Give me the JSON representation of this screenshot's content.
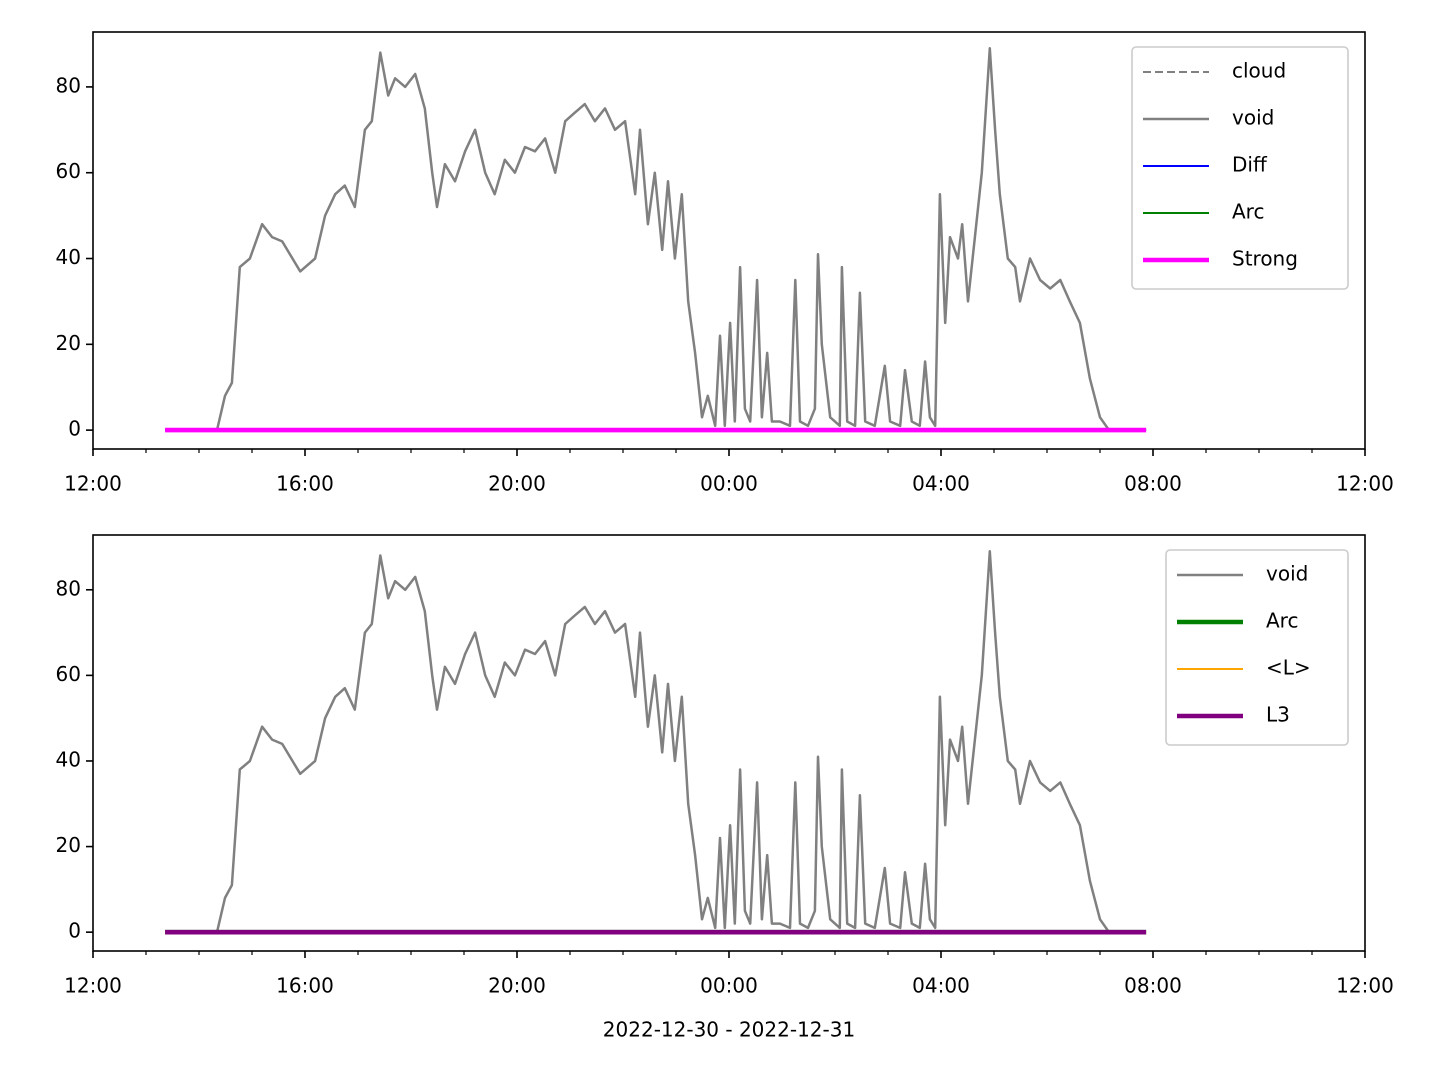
{
  "chart_data": [
    {
      "type": "line",
      "xlim": [
        0,
        24
      ],
      "ylim": [
        -4.4,
        92.8
      ],
      "xticks": [
        {
          "value": 0,
          "label": "12:00"
        },
        {
          "value": 4,
          "label": "16:00"
        },
        {
          "value": 8,
          "label": "20:00"
        },
        {
          "value": 12,
          "label": "00:00"
        },
        {
          "value": 16,
          "label": "04:00"
        },
        {
          "value": 20,
          "label": "08:00"
        },
        {
          "value": 24,
          "label": "12:00"
        }
      ],
      "xminorticks": [
        1,
        2,
        3,
        5,
        6,
        7,
        9,
        10,
        11,
        13,
        14,
        15,
        17,
        18,
        19,
        21,
        22,
        23
      ],
      "yticks": [
        0,
        20,
        40,
        60,
        80
      ],
      "legend": "upper right",
      "series": [
        {
          "name": "cloud",
          "color": "#808080",
          "linestyle": "dashed",
          "linewidth": 1,
          "x": [
            1.36,
            19.87
          ],
          "values": [
            0,
            0
          ]
        },
        {
          "name": "void",
          "color": "#808080",
          "linestyle": "solid",
          "linewidth": 1.2,
          "x": [
            2.34,
            2.49,
            2.62,
            2.77,
            2.96,
            3.19,
            3.38,
            3.57,
            3.91,
            4.19,
            4.38,
            4.57,
            4.75,
            4.94,
            5.13,
            5.26,
            5.42,
            5.57,
            5.7,
            5.89,
            6.08,
            6.26,
            6.4,
            6.49,
            6.64,
            6.83,
            7.02,
            7.21,
            7.4,
            7.58,
            7.77,
            7.96,
            8.15,
            8.34,
            8.53,
            8.72,
            8.91,
            9.09,
            9.28,
            9.47,
            9.66,
            9.85,
            10.04,
            10.23,
            10.32,
            10.47,
            10.6,
            10.74,
            10.85,
            10.98,
            11.11,
            11.23,
            11.36,
            11.49,
            11.6,
            11.74,
            11.83,
            11.92,
            12.02,
            12.11,
            12.21,
            12.3,
            12.4,
            12.53,
            12.62,
            12.72,
            12.81,
            12.96,
            13.15,
            13.25,
            13.34,
            13.49,
            13.62,
            13.68,
            13.75,
            13.91,
            14.09,
            14.13,
            14.23,
            14.38,
            14.47,
            14.57,
            14.75,
            14.94,
            15.04,
            15.23,
            15.32,
            15.45,
            15.6,
            15.7,
            15.79,
            15.89,
            15.98,
            16.08,
            16.17,
            16.32,
            16.4,
            16.51,
            16.64,
            16.77,
            16.92,
            17.02,
            17.11,
            17.26,
            17.4,
            17.49,
            17.68,
            17.87,
            18.06,
            18.25,
            18.43,
            18.62,
            18.81,
            19.0,
            19.17
          ],
          "values": [
            0,
            8,
            11,
            38,
            40,
            48,
            45,
            44,
            37,
            40,
            50,
            55,
            57,
            52,
            70,
            72,
            88,
            78,
            82,
            80,
            83,
            75,
            60,
            52,
            62,
            58,
            65,
            70,
            60,
            55,
            63,
            60,
            66,
            65,
            68,
            60,
            72,
            74,
            76,
            72,
            75,
            70,
            72,
            55,
            70,
            48,
            60,
            42,
            58,
            40,
            55,
            30,
            18,
            3,
            8,
            1,
            22,
            1,
            25,
            2,
            38,
            5,
            2,
            35,
            3,
            18,
            2,
            2,
            1,
            35,
            2,
            1,
            5,
            41,
            20,
            3,
            1,
            38,
            2,
            1,
            32,
            2,
            1,
            15,
            2,
            1,
            14,
            2,
            1,
            16,
            3,
            1,
            55,
            25,
            45,
            40,
            48,
            30,
            45,
            60,
            89,
            70,
            55,
            40,
            38,
            30,
            40,
            35,
            33,
            35,
            30,
            25,
            12,
            3,
            0
          ]
        },
        {
          "name": "Diff",
          "color": "#0000ff",
          "linestyle": "solid",
          "linewidth": 1,
          "x": [
            1.36,
            19.87
          ],
          "values": [
            0,
            0
          ]
        },
        {
          "name": "Arc",
          "color": "#008000",
          "linestyle": "solid",
          "linewidth": 1,
          "x": [
            1.36,
            19.87
          ],
          "values": [
            0,
            0
          ]
        },
        {
          "name": "Strong",
          "color": "#ff00ff",
          "linestyle": "solid",
          "linewidth": 2.2,
          "x": [
            1.36,
            19.87
          ],
          "values": [
            0,
            0
          ]
        }
      ]
    },
    {
      "type": "line",
      "xlim": [
        0,
        24
      ],
      "ylim": [
        -4.4,
        92.8
      ],
      "xlabel": "2022-12-30 - 2022-12-31",
      "xticks": [
        {
          "value": 0,
          "label": "12:00"
        },
        {
          "value": 4,
          "label": "16:00"
        },
        {
          "value": 8,
          "label": "20:00"
        },
        {
          "value": 12,
          "label": "00:00"
        },
        {
          "value": 16,
          "label": "04:00"
        },
        {
          "value": 20,
          "label": "08:00"
        },
        {
          "value": 24,
          "label": "12:00"
        }
      ],
      "xminorticks": [
        1,
        2,
        3,
        5,
        6,
        7,
        9,
        10,
        11,
        13,
        14,
        15,
        17,
        18,
        19,
        21,
        22,
        23
      ],
      "yticks": [
        0,
        20,
        40,
        60,
        80
      ],
      "legend": "upper right",
      "series": [
        {
          "name": "void",
          "color": "#808080",
          "linestyle": "solid",
          "linewidth": 1.2,
          "x": [
            2.34,
            2.49,
            2.62,
            2.77,
            2.96,
            3.19,
            3.38,
            3.57,
            3.91,
            4.19,
            4.38,
            4.57,
            4.75,
            4.94,
            5.13,
            5.26,
            5.42,
            5.57,
            5.7,
            5.89,
            6.08,
            6.26,
            6.4,
            6.49,
            6.64,
            6.83,
            7.02,
            7.21,
            7.4,
            7.58,
            7.77,
            7.96,
            8.15,
            8.34,
            8.53,
            8.72,
            8.91,
            9.09,
            9.28,
            9.47,
            9.66,
            9.85,
            10.04,
            10.23,
            10.32,
            10.47,
            10.6,
            10.74,
            10.85,
            10.98,
            11.11,
            11.23,
            11.36,
            11.49,
            11.6,
            11.74,
            11.83,
            11.92,
            12.02,
            12.11,
            12.21,
            12.3,
            12.4,
            12.53,
            12.62,
            12.72,
            12.81,
            12.96,
            13.15,
            13.25,
            13.34,
            13.49,
            13.62,
            13.68,
            13.75,
            13.91,
            14.09,
            14.13,
            14.23,
            14.38,
            14.47,
            14.57,
            14.75,
            14.94,
            15.04,
            15.23,
            15.32,
            15.45,
            15.6,
            15.7,
            15.79,
            15.89,
            15.98,
            16.08,
            16.17,
            16.32,
            16.4,
            16.51,
            16.64,
            16.77,
            16.92,
            17.02,
            17.11,
            17.26,
            17.4,
            17.49,
            17.68,
            17.87,
            18.06,
            18.25,
            18.43,
            18.62,
            18.81,
            19.0,
            19.17
          ],
          "values": [
            0,
            8,
            11,
            38,
            40,
            48,
            45,
            44,
            37,
            40,
            50,
            55,
            57,
            52,
            70,
            72,
            88,
            78,
            82,
            80,
            83,
            75,
            60,
            52,
            62,
            58,
            65,
            70,
            60,
            55,
            63,
            60,
            66,
            65,
            68,
            60,
            72,
            74,
            76,
            72,
            75,
            70,
            72,
            55,
            70,
            48,
            60,
            42,
            58,
            40,
            55,
            30,
            18,
            3,
            8,
            1,
            22,
            1,
            25,
            2,
            38,
            5,
            2,
            35,
            3,
            18,
            2,
            2,
            1,
            35,
            2,
            1,
            5,
            41,
            20,
            3,
            1,
            38,
            2,
            1,
            32,
            2,
            1,
            15,
            2,
            1,
            14,
            2,
            1,
            16,
            3,
            1,
            55,
            25,
            45,
            40,
            48,
            30,
            45,
            60,
            89,
            70,
            55,
            40,
            38,
            30,
            40,
            35,
            33,
            35,
            30,
            25,
            12,
            3,
            0
          ]
        },
        {
          "name": "Arc",
          "color": "#008000",
          "linestyle": "solid",
          "linewidth": 2.2,
          "x": [
            1.36,
            19.87
          ],
          "values": [
            0,
            0
          ]
        },
        {
          "name": "<L>",
          "color": "#ffa500",
          "linestyle": "solid",
          "linewidth": 1,
          "x": [
            1.36,
            19.87
          ],
          "values": [
            0,
            0
          ]
        },
        {
          "name": "L3",
          "color": "#800080",
          "linestyle": "solid",
          "linewidth": 2.2,
          "x": [
            1.36,
            19.87
          ],
          "values": [
            0,
            0
          ]
        }
      ]
    }
  ]
}
